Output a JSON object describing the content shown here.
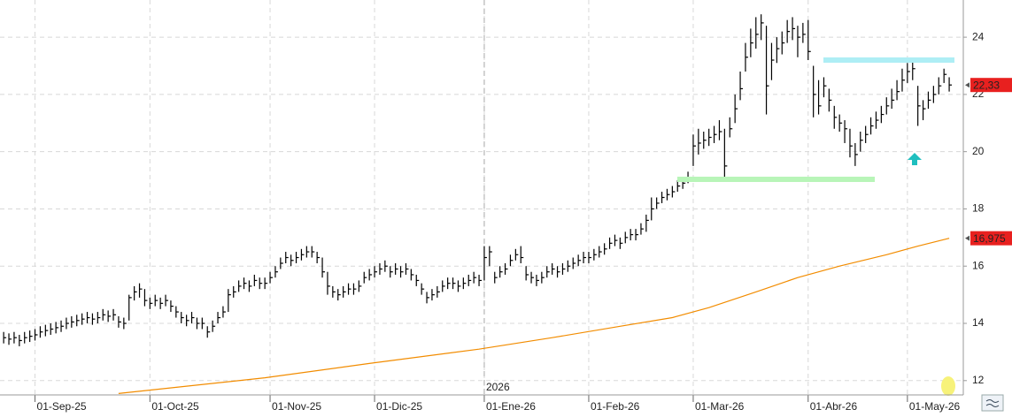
{
  "chart_data": {
    "type": "ohlc",
    "color": "#000000",
    "close": [
      13.5,
      13.45,
      13.5,
      13.4,
      13.5,
      13.55,
      13.6,
      13.7,
      13.75,
      13.8,
      13.85,
      13.9,
      14.0,
      14.05,
      14.1,
      14.15,
      14.2,
      14.15,
      14.2,
      14.3,
      14.25,
      14.3,
      14.05,
      14.0,
      14.9,
      15.1,
      15.2,
      14.8,
      14.7,
      14.8,
      14.7,
      14.8,
      14.6,
      14.4,
      14.2,
      14.1,
      14.2,
      14.0,
      14.0,
      13.7,
      13.9,
      14.2,
      14.4,
      15.0,
      15.1,
      15.3,
      15.4,
      15.3,
      15.5,
      15.4,
      15.4,
      15.6,
      15.8,
      16.1,
      16.3,
      16.2,
      16.3,
      16.4,
      16.5,
      16.5,
      16.3,
      15.8,
      15.3,
      15.1,
      15.0,
      15.1,
      15.2,
      15.2,
      15.3,
      15.6,
      15.7,
      15.8,
      15.9,
      16.0,
      15.8,
      15.9,
      15.8,
      15.9,
      15.7,
      15.5,
      15.2,
      14.9,
      15.0,
      15.1,
      15.3,
      15.4,
      15.4,
      15.3,
      15.4,
      15.5,
      15.6,
      15.5,
      16.3,
      16.5,
      15.6,
      15.8,
      15.9,
      16.2,
      16.4,
      16.3,
      15.7,
      15.6,
      15.5,
      15.6,
      15.8,
      15.9,
      15.8,
      15.9,
      16.0,
      16.1,
      16.2,
      16.3,
      16.3,
      16.4,
      16.5,
      16.6,
      16.8,
      16.9,
      16.8,
      17.0,
      17.1,
      17.1,
      17.3,
      17.6,
      18.0,
      18.2,
      18.4,
      18.5,
      18.6,
      18.8,
      18.9,
      19.1,
      20.2,
      20.3,
      20.4,
      20.5,
      20.6,
      20.7,
      19.5,
      20.8,
      21.5,
      22.2,
      23.3,
      23.8,
      24.1,
      24.5,
      22.3,
      23.2,
      23.6,
      23.8,
      24.2,
      24.3,
      24.0,
      24.1,
      23.5,
      22.0,
      21.6,
      22.3,
      21.8,
      21.2,
      21.0,
      20.8,
      20.2,
      19.9,
      20.4,
      20.6,
      20.9,
      21.1,
      21.3,
      21.6,
      21.8,
      22.1,
      22.5,
      22.8,
      22.9,
      21.6,
      21.5,
      21.8,
      22.0,
      22.3,
      22.7,
      22.33
    ],
    "high": [
      13.7,
      13.65,
      13.7,
      13.6,
      13.7,
      13.75,
      13.8,
      13.9,
      13.95,
      14.0,
      14.05,
      14.1,
      14.2,
      14.25,
      14.3,
      14.35,
      14.4,
      14.35,
      14.4,
      14.5,
      14.45,
      14.5,
      14.25,
      14.2,
      15.0,
      15.3,
      15.4,
      15.2,
      14.9,
      15.0,
      14.9,
      15.0,
      14.8,
      14.6,
      14.4,
      14.3,
      14.4,
      14.2,
      14.2,
      13.9,
      14.1,
      14.4,
      14.6,
      15.2,
      15.3,
      15.5,
      15.6,
      15.5,
      15.7,
      15.6,
      15.6,
      15.8,
      16.0,
      16.3,
      16.5,
      16.4,
      16.5,
      16.6,
      16.7,
      16.7,
      16.5,
      16.3,
      15.8,
      15.3,
      15.2,
      15.3,
      15.4,
      15.4,
      15.5,
      15.8,
      15.9,
      16.0,
      16.1,
      16.2,
      16.0,
      16.1,
      16.0,
      16.1,
      15.9,
      15.7,
      15.4,
      15.1,
      15.2,
      15.3,
      15.5,
      15.6,
      15.6,
      15.5,
      15.6,
      15.7,
      15.8,
      15.7,
      16.7,
      16.7,
      15.8,
      16.0,
      16.1,
      16.4,
      16.6,
      16.7,
      16.0,
      15.8,
      15.7,
      15.8,
      16.0,
      16.1,
      16.0,
      16.1,
      16.2,
      16.3,
      16.4,
      16.5,
      16.5,
      16.6,
      16.7,
      16.8,
      17.0,
      17.1,
      17.0,
      17.2,
      17.3,
      17.3,
      17.5,
      17.8,
      18.4,
      18.4,
      18.6,
      18.7,
      18.8,
      19.0,
      19.1,
      19.3,
      20.6,
      20.8,
      20.7,
      20.8,
      20.9,
      21.1,
      20.8,
      21.2,
      22.0,
      22.8,
      23.8,
      24.3,
      24.7,
      24.8,
      24.4,
      23.8,
      24.0,
      24.2,
      24.6,
      24.7,
      24.4,
      24.5,
      24.6,
      23.0,
      22.5,
      22.6,
      22.2,
      21.6,
      21.3,
      21.1,
      20.8,
      20.3,
      20.7,
      20.9,
      21.2,
      21.4,
      21.6,
      21.9,
      22.2,
      22.5,
      22.9,
      23.1,
      23.2,
      22.3,
      21.8,
      22.1,
      22.3,
      22.6,
      22.9,
      22.6
    ],
    "low": [
      13.3,
      13.25,
      13.3,
      13.2,
      13.3,
      13.35,
      13.4,
      13.5,
      13.55,
      13.6,
      13.65,
      13.7,
      13.8,
      13.85,
      13.9,
      13.95,
      14.0,
      13.95,
      14.0,
      14.1,
      14.05,
      14.1,
      13.85,
      13.8,
      14.1,
      14.8,
      14.9,
      14.6,
      14.5,
      14.6,
      14.5,
      14.6,
      14.4,
      14.2,
      14.0,
      13.9,
      14.0,
      13.8,
      13.8,
      13.5,
      13.7,
      14.0,
      14.2,
      14.4,
      14.9,
      15.1,
      15.2,
      15.1,
      15.3,
      15.2,
      15.2,
      15.4,
      15.6,
      15.9,
      16.1,
      16.0,
      16.1,
      16.2,
      16.3,
      16.3,
      16.1,
      15.6,
      15.0,
      14.9,
      14.8,
      14.9,
      15.0,
      15.0,
      15.1,
      15.4,
      15.5,
      15.6,
      15.7,
      15.8,
      15.6,
      15.7,
      15.6,
      15.7,
      15.5,
      15.3,
      15.0,
      14.7,
      14.8,
      14.9,
      15.1,
      15.2,
      15.2,
      15.1,
      15.2,
      15.3,
      15.4,
      15.3,
      15.5,
      16.0,
      15.4,
      15.6,
      15.7,
      16.0,
      16.2,
      16.1,
      15.5,
      15.4,
      15.3,
      15.4,
      15.6,
      15.7,
      15.6,
      15.7,
      15.8,
      15.9,
      16.0,
      16.1,
      16.1,
      16.2,
      16.3,
      16.4,
      16.6,
      16.7,
      16.6,
      16.8,
      16.9,
      16.9,
      17.1,
      17.2,
      17.6,
      18.0,
      18.2,
      18.3,
      18.4,
      18.6,
      18.7,
      18.9,
      19.5,
      19.9,
      20.1,
      20.2,
      20.3,
      20.4,
      19.1,
      20.5,
      21.0,
      21.8,
      22.8,
      23.3,
      23.6,
      23.9,
      21.3,
      22.5,
      23.1,
      23.4,
      23.8,
      23.9,
      23.3,
      23.8,
      23.2,
      21.2,
      21.3,
      21.9,
      21.4,
      20.8,
      20.7,
      20.3,
      19.8,
      19.5,
      20.0,
      20.3,
      20.6,
      20.8,
      21.0,
      21.3,
      21.5,
      21.8,
      22.1,
      22.4,
      22.5,
      20.9,
      21.1,
      21.5,
      21.7,
      22.0,
      22.4,
      22.1
    ],
    "ma": {
      "color": "#f28c00",
      "x": [
        22,
        50,
        70,
        91,
        105,
        118,
        128,
        135,
        144,
        152,
        160,
        169,
        175,
        181
      ],
      "values": [
        11.55,
        12.1,
        12.6,
        13.1,
        13.5,
        13.9,
        14.2,
        14.55,
        15.1,
        15.6,
        16.0,
        16.4,
        16.7,
        16.975
      ]
    },
    "xlim": [
      -0.7,
      183.7
    ],
    "xticks": [
      {
        "value": 6,
        "label": "01-Sep-25"
      },
      {
        "value": 28,
        "label": "01-Oct-25"
      },
      {
        "value": 51,
        "label": "01-Nov-25"
      },
      {
        "value": 71,
        "label": "01-Dic-25"
      },
      {
        "value": 92,
        "label": "01-Ene-26"
      },
      {
        "value": 112,
        "label": "01-Feb-26"
      },
      {
        "value": 132,
        "label": "01-Mar-26"
      },
      {
        "value": 154,
        "label": "01-Abr-26"
      },
      {
        "value": 173,
        "label": "01-May-26"
      }
    ],
    "year_marker": {
      "value": 92,
      "label": "2026"
    },
    "ylim": [
      11.5,
      25.3
    ],
    "yticks": [
      12,
      14,
      16,
      18,
      20,
      22,
      24
    ],
    "price_tags": [
      {
        "value": 22.33,
        "label": "22,33"
      },
      {
        "value": 16.975,
        "label": "16,975"
      }
    ],
    "tag_color": "#e8201f",
    "grid": true
  }
}
